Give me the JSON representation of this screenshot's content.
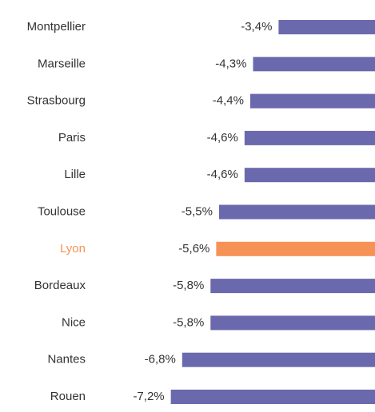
{
  "chart_data": {
    "type": "hbar",
    "categories": [
      "Montpellier",
      "Marseille",
      "Strasbourg",
      "Paris",
      "Lille",
      "Toulouse",
      "Lyon",
      "Bordeaux",
      "Nice",
      "Nantes",
      "Rouen"
    ],
    "values": [
      -3.4,
      -4.3,
      -4.4,
      -4.6,
      -4.6,
      -5.5,
      -5.6,
      -5.8,
      -5.8,
      -6.8,
      -7.2
    ],
    "value_labels": [
      "-3,4%",
      "-4,3%",
      "-4,4%",
      "-4,6%",
      "-4,6%",
      "-5,5%",
      "-5,6%",
      "-5,8%",
      "-5,8%",
      "-6,8%",
      "-7,2%"
    ],
    "color": "#6b69ad",
    "colors": [
      "#6b69ad",
      "#6b69ad",
      "#6b69ad",
      "#6b69ad",
      "#6b69ad",
      "#6b69ad",
      "#f79256",
      "#6b69ad",
      "#6b69ad",
      "#6b69ad",
      "#6b69ad"
    ],
    "xlim": [
      0,
      -7.5
    ]
  }
}
